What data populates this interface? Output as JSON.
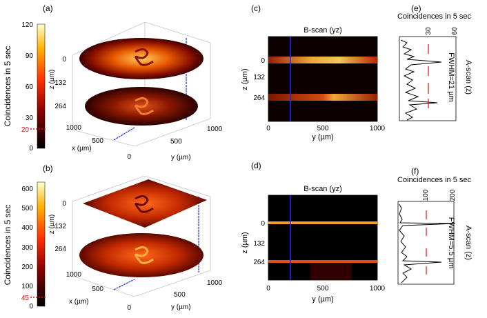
{
  "panels": {
    "a": {
      "label": "(a)",
      "colorbar": {
        "title": "Coincidences in 5 sec",
        "ticks": [
          "120",
          "90",
          "60",
          "30",
          "0"
        ],
        "threshold": "20"
      },
      "axes": {
        "z_label": "z (µm)",
        "x_label": "x (µm)",
        "y_label": "y (µm)",
        "z_ticks": [
          "0",
          "132",
          "264"
        ],
        "x_ticks": [
          "1000",
          "500",
          "0"
        ],
        "y_ticks": [
          "500",
          "1000"
        ]
      }
    },
    "b": {
      "label": "(b)",
      "colorbar": {
        "title": "Coincidences in 5 sec",
        "ticks": [
          "600",
          "500",
          "400",
          "300",
          "200",
          "100",
          "0"
        ],
        "threshold": "45"
      },
      "axes": {
        "z_label": "z (µm)",
        "x_label": "x (µm)",
        "y_label": "y (µm)",
        "z_ticks": [
          "0",
          "132",
          "264"
        ],
        "x_ticks": [
          "1000",
          "500",
          "0"
        ],
        "y_ticks": [
          "500",
          "1000"
        ]
      }
    },
    "c": {
      "label": "(c)",
      "title": "B-scan (yz)",
      "z_label": "z (µm)",
      "y_label": "y (µm)",
      "z_ticks": [
        "0",
        "132",
        "264"
      ],
      "y_ticks": [
        "0",
        "500",
        "1000"
      ]
    },
    "d": {
      "label": "(d)",
      "title": "B-scan (yz)",
      "z_label": "z (µm)",
      "y_label": "y (µm)",
      "z_ticks": [
        "0",
        "132",
        "264"
      ],
      "y_ticks": [
        "0",
        "500",
        "1000"
      ]
    },
    "e": {
      "label": "(e)",
      "top_label": "Coincidences in 5 sec",
      "ticks": [
        "30",
        "60"
      ],
      "side_label": "A-scan (z)",
      "fwhm": "FWHM=21 µm"
    },
    "f": {
      "label": "(f)",
      "top_label": "Coincidences in 5 sec",
      "ticks": [
        "100",
        "200"
      ],
      "side_label": "A-scan (z)",
      "fwhm": "FWHM=5.5 µm"
    }
  },
  "colors": {
    "hot_dark": "#1a0000",
    "hot_mid": "#d83000",
    "hot_bright": "#ffd24a",
    "scan_line": "#1a2bff",
    "marker": "#e01010"
  }
}
